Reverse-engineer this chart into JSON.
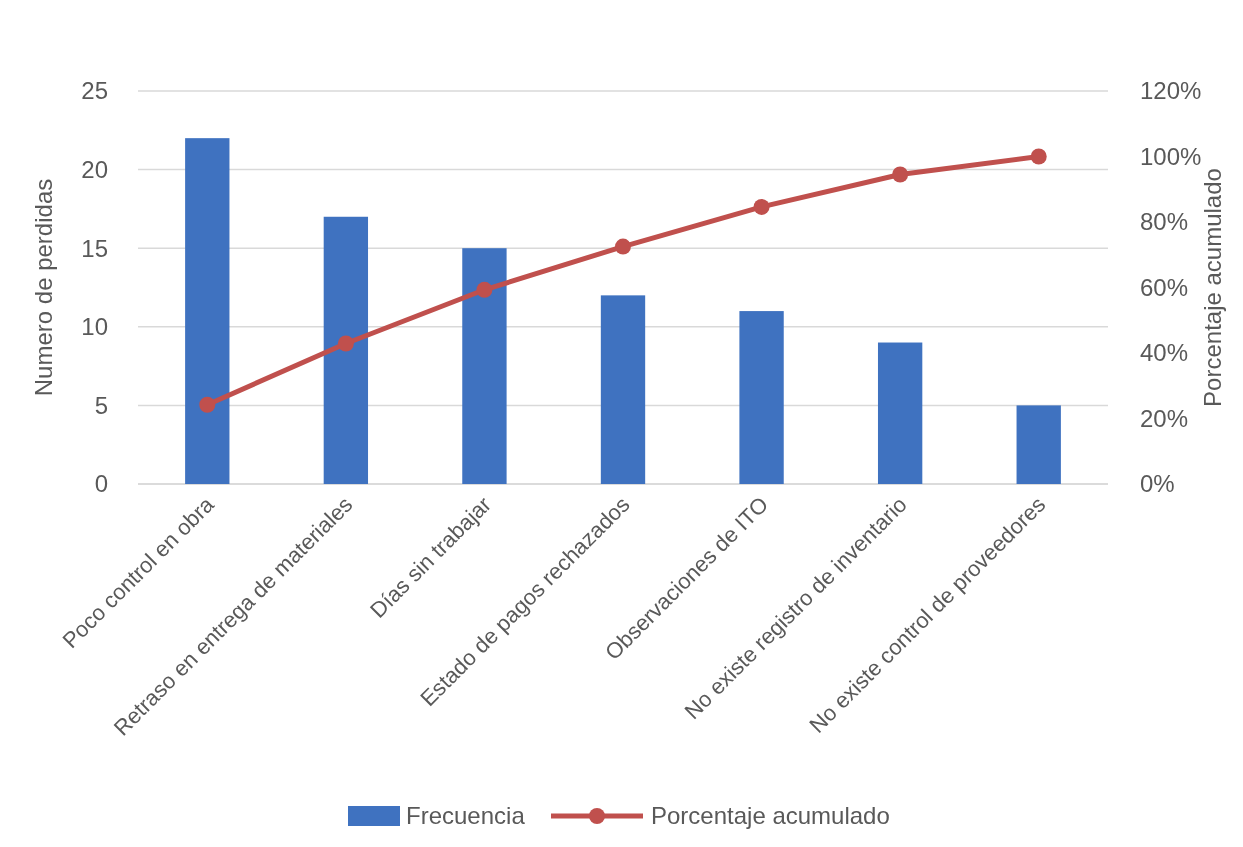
{
  "chart_data": {
    "type": "bar",
    "xlabel": null,
    "ylabel": "Numero de perdidas",
    "y2label": "Porcentaje acumulado",
    "categories": [
      "Poco control en obra",
      "Retraso en entrega de materiales",
      "Días sin trabajar",
      "Estado de pagos rechazados",
      "Observaciones de ITO",
      "No existe registro de inventario",
      "No existe control de proveedores"
    ],
    "series": [
      {
        "name": "Frecuencia",
        "color": "#3f72c0",
        "values": [
          22,
          17,
          15,
          12,
          11,
          9,
          5
        ]
      },
      {
        "name": "Porcentaje acumulado",
        "type": "line",
        "axis": "y2",
        "color": "#c0504d",
        "marker": "circle",
        "values": [
          24.2,
          42.9,
          59.3,
          72.5,
          84.6,
          94.5,
          100
        ]
      }
    ],
    "ylim": [
      0,
      25
    ],
    "yticks": [
      0,
      5,
      10,
      15,
      20,
      25
    ],
    "y2lim": [
      0,
      120
    ],
    "y2ticks": [
      {
        "value": 0,
        "label": "0%"
      },
      {
        "value": 20,
        "label": "20%"
      },
      {
        "value": 40,
        "label": "40%"
      },
      {
        "value": 60,
        "label": "60%"
      },
      {
        "value": 80,
        "label": "80%"
      },
      {
        "value": 100,
        "label": "100%"
      },
      {
        "value": 120,
        "label": "120%"
      }
    ],
    "grid": "y",
    "legend": "bottom"
  }
}
